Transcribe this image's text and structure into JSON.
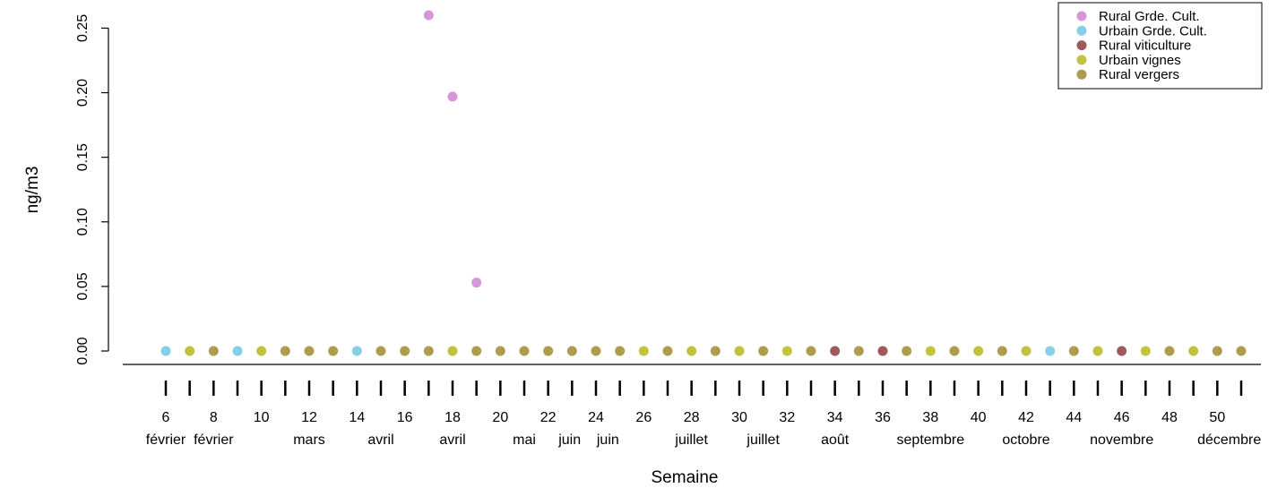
{
  "chart_data": {
    "type": "scatter",
    "xlabel": "Semaine",
    "ylabel": "ng/m3",
    "xlim": [
      6,
      51
    ],
    "ylim": [
      0,
      0.26
    ],
    "y_ticks": [
      "0.00",
      "0.05",
      "0.10",
      "0.15",
      "0.20",
      "0.25"
    ],
    "x_ticks": [
      6,
      7,
      8,
      9,
      10,
      11,
      12,
      13,
      14,
      15,
      16,
      17,
      18,
      19,
      20,
      21,
      22,
      23,
      24,
      25,
      26,
      27,
      28,
      29,
      30,
      31,
      32,
      33,
      34,
      35,
      36,
      37,
      38,
      39,
      40,
      41,
      42,
      43,
      44,
      45,
      46,
      47,
      48,
      49,
      50,
      51
    ],
    "x_number_labels": [
      {
        "x": 6,
        "label": "6"
      },
      {
        "x": 8,
        "label": "8"
      },
      {
        "x": 10,
        "label": "10"
      },
      {
        "x": 12,
        "label": "12"
      },
      {
        "x": 14,
        "label": "14"
      },
      {
        "x": 16,
        "label": "16"
      },
      {
        "x": 18,
        "label": "18"
      },
      {
        "x": 20,
        "label": "20"
      },
      {
        "x": 22,
        "label": "22"
      },
      {
        "x": 24,
        "label": "24"
      },
      {
        "x": 26,
        "label": "26"
      },
      {
        "x": 28,
        "label": "28"
      },
      {
        "x": 30,
        "label": "30"
      },
      {
        "x": 32,
        "label": "32"
      },
      {
        "x": 34,
        "label": "34"
      },
      {
        "x": 36,
        "label": "36"
      },
      {
        "x": 38,
        "label": "38"
      },
      {
        "x": 40,
        "label": "40"
      },
      {
        "x": 42,
        "label": "42"
      },
      {
        "x": 44,
        "label": "44"
      },
      {
        "x": 46,
        "label": "46"
      },
      {
        "x": 48,
        "label": "48"
      },
      {
        "x": 50,
        "label": "50"
      }
    ],
    "x_month_labels": [
      {
        "x": 6,
        "label": "février"
      },
      {
        "x": 8,
        "label": "février"
      },
      {
        "x": 12,
        "label": "mars"
      },
      {
        "x": 15,
        "label": "avril"
      },
      {
        "x": 18,
        "label": "avril"
      },
      {
        "x": 21,
        "label": "mai"
      },
      {
        "x": 22.9,
        "label": "juin"
      },
      {
        "x": 24.5,
        "label": "juin"
      },
      {
        "x": 28,
        "label": "juillet"
      },
      {
        "x": 31,
        "label": "juillet"
      },
      {
        "x": 34,
        "label": "août"
      },
      {
        "x": 38,
        "label": "septembre"
      },
      {
        "x": 42,
        "label": "octobre"
      },
      {
        "x": 46,
        "label": "novembre"
      },
      {
        "x": 50.5,
        "label": "décembre"
      }
    ],
    "legend_position": "top-right",
    "series": [
      {
        "name": "Rural Grde. Cult.",
        "color": "#d895d8",
        "points": [
          [
            17,
            0.26
          ],
          [
            18,
            0.197
          ],
          [
            19,
            0.053
          ]
        ]
      },
      {
        "name": "Urbain Grde. Cult.",
        "color": "#87ceeb",
        "points": [
          [
            6,
            0
          ],
          [
            9,
            0
          ],
          [
            14,
            0
          ],
          [
            43,
            0
          ]
        ]
      },
      {
        "name": "Rural viticulture",
        "color": "#9e5a5a",
        "points": [
          [
            34,
            0
          ],
          [
            36,
            0
          ],
          [
            46,
            0
          ]
        ]
      },
      {
        "name": "Urbain vignes",
        "color": "#c2c23e",
        "points": [
          [
            7,
            0
          ],
          [
            10,
            0
          ],
          [
            18,
            0
          ],
          [
            26,
            0
          ],
          [
            28,
            0
          ],
          [
            30,
            0
          ],
          [
            32,
            0
          ],
          [
            38,
            0
          ],
          [
            40,
            0
          ],
          [
            42,
            0
          ],
          [
            45,
            0
          ],
          [
            47,
            0
          ],
          [
            49,
            0
          ]
        ]
      },
      {
        "name": "Rural vergers",
        "color": "#b09a4e",
        "points": [
          [
            8,
            0
          ],
          [
            11,
            0
          ],
          [
            12,
            0
          ],
          [
            13,
            0
          ],
          [
            15,
            0
          ],
          [
            16,
            0
          ],
          [
            17,
            0
          ],
          [
            19,
            0
          ],
          [
            20,
            0
          ],
          [
            21,
            0
          ],
          [
            22,
            0
          ],
          [
            23,
            0
          ],
          [
            24,
            0
          ],
          [
            25,
            0
          ],
          [
            27,
            0
          ],
          [
            29,
            0
          ],
          [
            31,
            0
          ],
          [
            33,
            0
          ],
          [
            35,
            0
          ],
          [
            37,
            0
          ],
          [
            39,
            0
          ],
          [
            41,
            0
          ],
          [
            44,
            0
          ],
          [
            48,
            0
          ],
          [
            50,
            0
          ],
          [
            51,
            0
          ]
        ]
      }
    ]
  }
}
